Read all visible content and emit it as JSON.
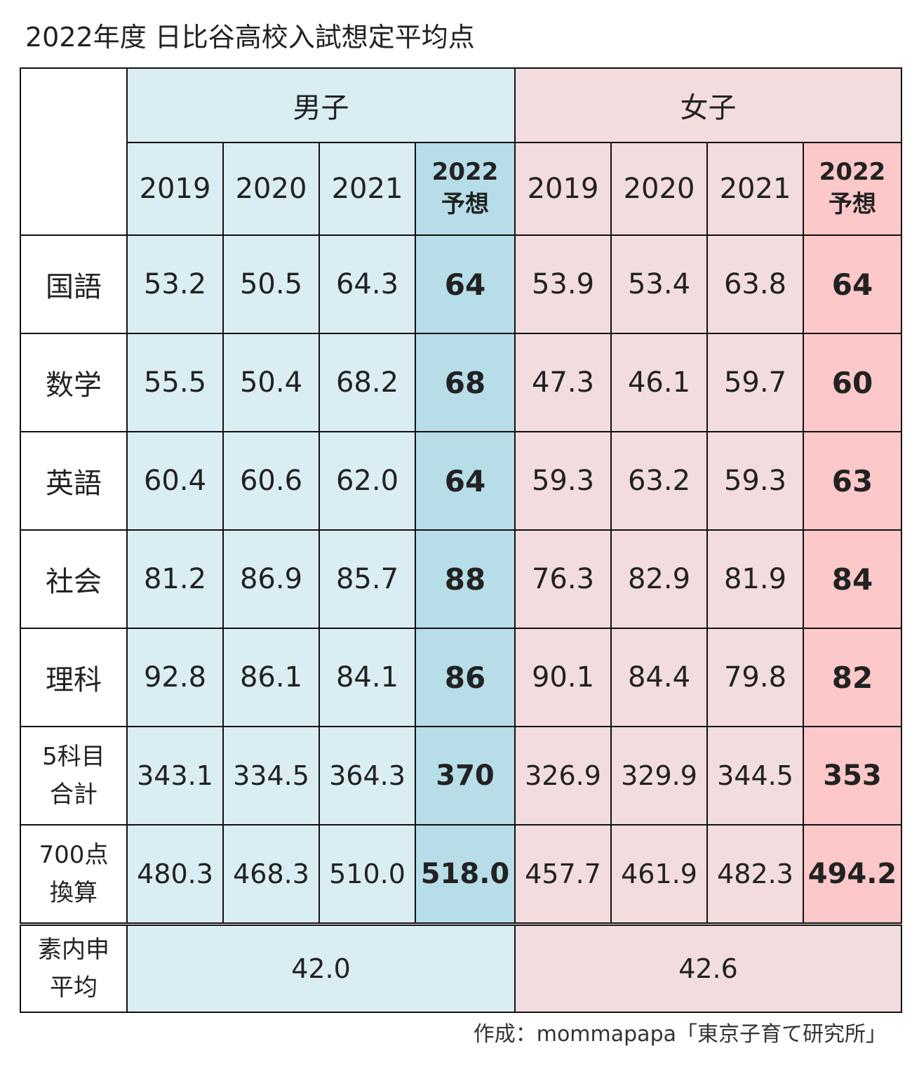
{
  "title": "2022年度 日比谷高校入試想定平均点",
  "chart_data": {
    "type": "table",
    "groups": [
      "男子",
      "女子"
    ],
    "columns": [
      "2019",
      "2020",
      "2021",
      "2022予想"
    ],
    "column_headers": {
      "year_2019": "2019",
      "year_2020": "2020",
      "year_2021": "2021",
      "predict_line1": "2022",
      "predict_line2": "予想"
    },
    "rows": [
      {
        "label": "国語",
        "male": [
          "53.2",
          "50.5",
          "64.3",
          "64"
        ],
        "female": [
          "53.9",
          "53.4",
          "63.8",
          "64"
        ]
      },
      {
        "label": "数学",
        "male": [
          "55.5",
          "50.4",
          "68.2",
          "68"
        ],
        "female": [
          "47.3",
          "46.1",
          "59.7",
          "60"
        ]
      },
      {
        "label": "英語",
        "male": [
          "60.4",
          "60.6",
          "62.0",
          "64"
        ],
        "female": [
          "59.3",
          "63.2",
          "59.3",
          "63"
        ]
      },
      {
        "label": "社会",
        "male": [
          "81.2",
          "86.9",
          "85.7",
          "88"
        ],
        "female": [
          "76.3",
          "82.9",
          "81.9",
          "84"
        ]
      },
      {
        "label": "理科",
        "male": [
          "92.8",
          "86.1",
          "84.1",
          "86"
        ],
        "female": [
          "90.1",
          "84.4",
          "79.8",
          "82"
        ]
      },
      {
        "label_line1": "5科目",
        "label_line2": "合計",
        "male": [
          "343.1",
          "334.5",
          "364.3",
          "370"
        ],
        "female": [
          "326.9",
          "329.9",
          "344.5",
          "353"
        ]
      },
      {
        "label_line1": "700点",
        "label_line2": "換算",
        "male": [
          "480.3",
          "468.3",
          "510.0",
          "518.0"
        ],
        "female": [
          "457.7",
          "461.9",
          "482.3",
          "494.2"
        ]
      }
    ],
    "naishin": {
      "label_line1": "素内申",
      "label_line2": "平均",
      "male": "42.0",
      "female": "42.6"
    },
    "colors": {
      "male": "#daedf3",
      "male_highlight": "#b6dde8",
      "female": "#f2dcdd",
      "female_highlight": "#fcc8c9"
    }
  },
  "credit": "作成：mommapapa「東京子育て研究所」"
}
